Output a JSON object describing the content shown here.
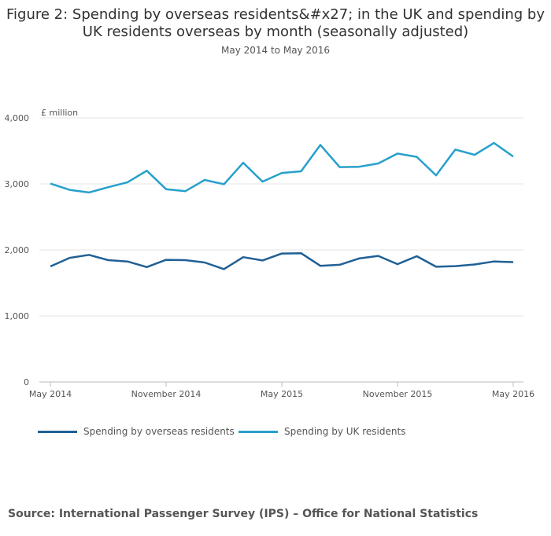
{
  "chart_data": {
    "type": "line",
    "title": "Figure 2: Spending by overseas residents&#x27; in the UK and spending by UK residents overseas by month (seasonally adjusted)",
    "subtitle": "May 2014 to May 2016",
    "ylabel": "£ million",
    "ylim": [
      0,
      4000
    ],
    "yticks": [
      "0",
      "1,000",
      "2,000",
      "3,000",
      "4,000"
    ],
    "yticks_values": [
      0,
      1000,
      2000,
      3000,
      4000
    ],
    "x": [
      "May 2014",
      "Jun 2014",
      "Jul 2014",
      "Aug 2014",
      "Sep 2014",
      "Oct 2014",
      "Nov 2014",
      "Dec 2014",
      "Jan 2015",
      "Feb 2015",
      "Mar 2015",
      "Apr 2015",
      "May 2015",
      "Jun 2015",
      "Jul 2015",
      "Aug 2015",
      "Sep 2015",
      "Oct 2015",
      "Nov 2015",
      "Dec 2015",
      "Jan 2016",
      "Feb 2016",
      "Mar 2016",
      "Apr 2016",
      "May 2016"
    ],
    "xtick_labels": [
      {
        "index": 0,
        "label": "May 2014"
      },
      {
        "index": 6,
        "label": "November 2014"
      },
      {
        "index": 12,
        "label": "May 2015"
      },
      {
        "index": 18,
        "label": "November 2015"
      },
      {
        "index": 24,
        "label": "May 2016"
      }
    ],
    "grid": true,
    "legend_placement": "bottom",
    "series": [
      {
        "name": "Spending by overseas residents",
        "color": "#206095",
        "values": [
          1750,
          1880,
          1925,
          1845,
          1825,
          1740,
          1850,
          1845,
          1810,
          1710,
          1890,
          1840,
          1945,
          1950,
          1760,
          1775,
          1870,
          1910,
          1785,
          1905,
          1745,
          1755,
          1780,
          1825,
          1815
        ]
      },
      {
        "name": "Spending by UK residents",
        "color": "#27a0cc",
        "values": [
          3005,
          2910,
          2870,
          2950,
          3025,
          3200,
          2920,
          2890,
          3060,
          2995,
          3320,
          3035,
          3165,
          3190,
          3590,
          3255,
          3260,
          3310,
          3460,
          3410,
          3130,
          3520,
          3440,
          3620,
          3415
        ]
      }
    ]
  },
  "source": "Source: International Passenger Survey (IPS) – Office for National Statistics"
}
